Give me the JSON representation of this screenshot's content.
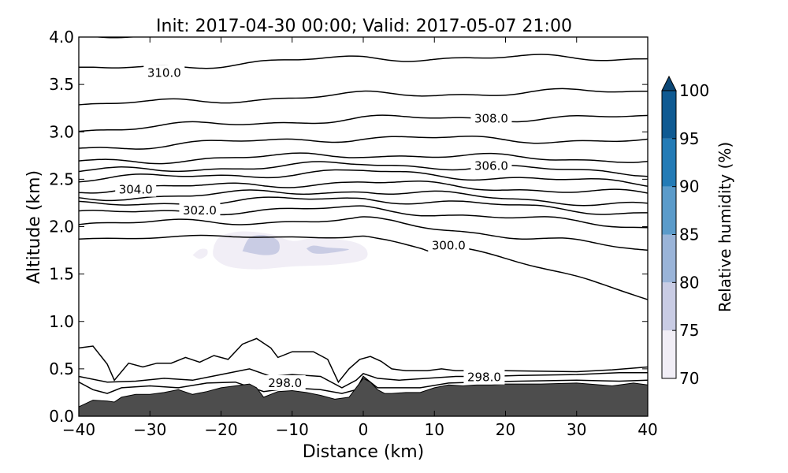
{
  "chart_data": {
    "type": "contour",
    "title": "Init: 2017-04-30 00:00; Valid: 2017-05-07 21:00",
    "xlabel": "Distance (km)",
    "ylabel": "Altitude (km)",
    "xlim": [
      -40,
      40
    ],
    "ylim": [
      0.0,
      4.0
    ],
    "x_ticks": [
      -40,
      -30,
      -20,
      -10,
      0,
      10,
      20,
      30,
      40
    ],
    "x_tick_labels": [
      "−40",
      "−30",
      "−20",
      "−10",
      "0",
      "10",
      "20",
      "30",
      "40"
    ],
    "y_ticks": [
      0.0,
      0.5,
      1.0,
      1.5,
      2.0,
      2.5,
      3.0,
      3.5,
      4.0
    ],
    "y_tick_labels": [
      "0.0",
      "0.5",
      "1.0",
      "1.5",
      "2.0",
      "2.5",
      "3.0",
      "3.5",
      "4.0"
    ],
    "colorbar": {
      "label": "Relative humidity (%)",
      "levels": [
        70,
        75,
        80,
        85,
        90,
        95,
        100
      ],
      "tick_labels": [
        "70",
        "75",
        "80",
        "85",
        "90",
        "95",
        "100"
      ],
      "colors": [
        "#f1eef6",
        "#c9cce4",
        "#9ab4d8",
        "#5b9bca",
        "#237bb6",
        "#0f5a92",
        "#0b4776"
      ],
      "extend": "max"
    },
    "terrain": {
      "color": "#4d4d4d",
      "x": [
        -40,
        -38,
        -36,
        -35,
        -34,
        -32,
        -30,
        -28,
        -26,
        -24,
        -22,
        -20,
        -18,
        -16,
        -15,
        -14,
        -12,
        -10,
        -8,
        -6,
        -4,
        -2,
        0,
        1,
        2,
        3,
        4,
        6,
        8,
        10,
        12,
        14,
        16,
        18,
        20,
        25,
        30,
        35,
        38,
        40
      ],
      "y": [
        0.1,
        0.17,
        0.16,
        0.15,
        0.2,
        0.23,
        0.23,
        0.25,
        0.28,
        0.23,
        0.26,
        0.3,
        0.32,
        0.34,
        0.3,
        0.2,
        0.26,
        0.27,
        0.25,
        0.22,
        0.18,
        0.2,
        0.4,
        0.36,
        0.28,
        0.24,
        0.24,
        0.25,
        0.25,
        0.3,
        0.33,
        0.32,
        0.33,
        0.33,
        0.34,
        0.34,
        0.35,
        0.32,
        0.35,
        0.33
      ]
    },
    "humidity_regions": [
      {
        "level_band": "70-75",
        "points": [
          [
            -21,
            1.8
          ],
          [
            -20,
            1.9
          ],
          [
            -17,
            1.95
          ],
          [
            -13,
            1.92
          ],
          [
            -10,
            1.85
          ],
          [
            -7,
            1.88
          ],
          [
            -4,
            1.87
          ],
          [
            -1,
            1.83
          ],
          [
            0.5,
            1.75
          ],
          [
            0,
            1.65
          ],
          [
            -4,
            1.6
          ],
          [
            -10,
            1.58
          ],
          [
            -15,
            1.55
          ],
          [
            -19,
            1.58
          ],
          [
            -21,
            1.68
          ]
        ]
      },
      {
        "level_band": "70-75",
        "points": [
          [
            -24,
            1.7
          ],
          [
            -23,
            1.76
          ],
          [
            -22,
            1.76
          ],
          [
            -22,
            1.7
          ],
          [
            -23,
            1.66
          ]
        ]
      },
      {
        "level_band": "75-80",
        "points": [
          [
            -17,
            1.74
          ],
          [
            -16,
            1.88
          ],
          [
            -14,
            1.91
          ],
          [
            -12,
            1.85
          ],
          [
            -12,
            1.73
          ],
          [
            -14,
            1.7
          ]
        ]
      },
      {
        "level_band": "75-80",
        "points": [
          [
            -8,
            1.77
          ],
          [
            -7,
            1.8
          ],
          [
            -5,
            1.78
          ],
          [
            -2,
            1.76
          ],
          [
            -5,
            1.72
          ],
          [
            -7,
            1.72
          ]
        ]
      }
    ],
    "isentropes": [
      {
        "points": [
          [
            -40,
            0.36
          ],
          [
            -38,
            0.28
          ],
          [
            -36,
            0.24
          ],
          [
            -34,
            0.3
          ],
          [
            -30,
            0.32
          ],
          [
            -26,
            0.3
          ],
          [
            -22,
            0.35
          ],
          [
            -18,
            0.36
          ],
          [
            -14,
            0.26
          ],
          [
            -10,
            0.3
          ],
          [
            -6,
            0.28
          ],
          [
            -3,
            0.24
          ],
          [
            -1,
            0.28
          ],
          [
            0,
            0.42
          ],
          [
            2,
            0.3
          ],
          [
            4,
            0.3
          ],
          [
            8,
            0.3
          ],
          [
            12,
            0.35
          ],
          [
            16,
            0.36
          ],
          [
            22,
            0.37
          ],
          [
            30,
            0.38
          ],
          [
            36,
            0.37
          ],
          [
            40,
            0.38
          ]
        ]
      },
      {
        "points": [
          [
            -40,
            0.42
          ],
          [
            -36,
            0.36
          ],
          [
            -32,
            0.37
          ],
          [
            -28,
            0.4
          ],
          [
            -24,
            0.38
          ],
          [
            -20,
            0.44
          ],
          [
            -16,
            0.5
          ],
          [
            -13,
            0.42
          ],
          [
            -10,
            0.44
          ],
          [
            -6,
            0.42
          ],
          [
            -3,
            0.3
          ],
          [
            -1,
            0.38
          ],
          [
            0,
            0.45
          ],
          [
            2,
            0.4
          ],
          [
            5,
            0.38
          ],
          [
            9,
            0.4
          ],
          [
            13,
            0.42
          ],
          [
            17,
            0.42
          ],
          [
            22,
            0.43
          ],
          [
            30,
            0.44
          ],
          [
            36,
            0.46
          ],
          [
            40,
            0.46
          ]
        ]
      },
      {
        "points": [
          [
            -40,
            0.72
          ],
          [
            -38,
            0.74
          ],
          [
            -36,
            0.55
          ],
          [
            -35,
            0.38
          ],
          [
            -33,
            0.56
          ],
          [
            -31,
            0.52
          ],
          [
            -29,
            0.56
          ],
          [
            -27,
            0.56
          ],
          [
            -25,
            0.62
          ],
          [
            -23,
            0.57
          ],
          [
            -21,
            0.64
          ],
          [
            -19,
            0.6
          ],
          [
            -17,
            0.76
          ],
          [
            -15,
            0.82
          ],
          [
            -13,
            0.72
          ],
          [
            -12,
            0.62
          ],
          [
            -10,
            0.68
          ],
          [
            -7,
            0.68
          ],
          [
            -5,
            0.6
          ],
          [
            -3.5,
            0.36
          ],
          [
            -2,
            0.5
          ],
          [
            -0.5,
            0.6
          ],
          [
            1,
            0.63
          ],
          [
            2.5,
            0.58
          ],
          [
            4,
            0.5
          ],
          [
            6,
            0.48
          ],
          [
            9,
            0.48
          ],
          [
            11,
            0.5
          ],
          [
            13,
            0.48
          ],
          [
            15,
            0.48
          ],
          [
            20,
            0.48
          ],
          [
            30,
            0.47
          ],
          [
            35,
            0.49
          ],
          [
            40,
            0.52
          ]
        ]
      }
    ],
    "isentrope_bands": {
      "base_y_at_x_minus40": [
        1.88,
        2.03,
        2.14,
        2.23,
        2.3,
        2.39,
        2.5,
        2.58,
        2.68,
        2.83,
        3.02,
        3.28,
        3.65,
        4.0
      ],
      "base_y_at_x_0": [
        1.9,
        2.07,
        2.19,
        2.3,
        2.38,
        2.47,
        2.58,
        2.66,
        2.76,
        2.94,
        3.14,
        3.39,
        3.78,
        4.08
      ],
      "base_y_at_x_plus40": [
        1.22,
        1.75,
        2.0,
        2.14,
        2.22,
        2.34,
        2.45,
        2.57,
        2.7,
        2.9,
        3.15,
        3.43,
        3.78,
        4.08
      ]
    },
    "contour_labels": [
      {
        "text": "310.0",
        "x": -28,
        "y": 3.62
      },
      {
        "text": "308.0",
        "x": 18,
        "y": 3.14
      },
      {
        "text": "306.0",
        "x": 18,
        "y": 2.64
      },
      {
        "text": "304.0",
        "x": -32,
        "y": 2.39
      },
      {
        "text": "302.0",
        "x": -23,
        "y": 2.17
      },
      {
        "text": "300.0",
        "x": 12,
        "y": 1.8
      },
      {
        "text": "298.0",
        "x": -11,
        "y": 0.35
      },
      {
        "text": "298.0",
        "x": 17,
        "y": 0.41
      }
    ]
  }
}
